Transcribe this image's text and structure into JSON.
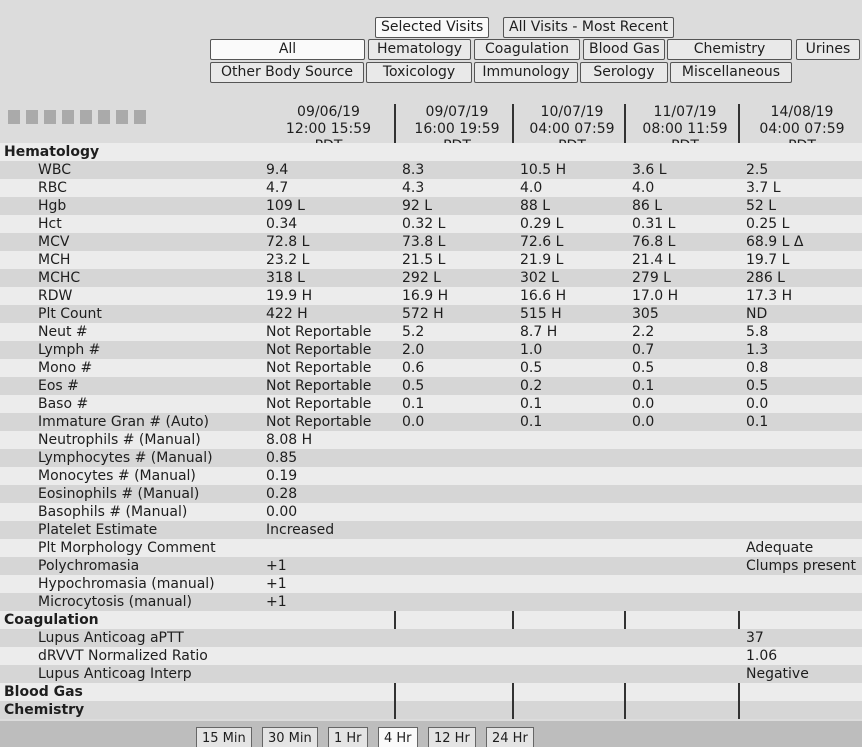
{
  "toolbar": {
    "visit_buttons": [
      "Selected Visits",
      "All Visits - Most Recent"
    ],
    "tabs_row1": [
      "All",
      "Hematology",
      "Coagulation",
      "Blood Gas",
      "Chemistry",
      "Urines"
    ],
    "tabs_row2": [
      "Other Body Source",
      "Toxicology",
      "Immunology",
      "Serology",
      "Miscellaneous"
    ]
  },
  "columns": [
    {
      "date": "09/06/19",
      "time": "12:00 15:59",
      "zone": "PDT"
    },
    {
      "date": "09/07/19",
      "time": "16:00 19:59",
      "zone": "PDT"
    },
    {
      "date": "10/07/19",
      "time": "04:00 07:59",
      "zone": "PDT"
    },
    {
      "date": "11/07/19",
      "time": "08:00 11:59",
      "zone": "PDT"
    },
    {
      "date": "14/08/19",
      "time": "04:00 07:59",
      "zone": "PDT"
    }
  ],
  "sections": [
    {
      "title": "Hematology",
      "rows": [
        {
          "label": "WBC",
          "values": [
            "9.4",
            "8.3",
            "10.5 H",
            "3.6 L",
            "2.5"
          ]
        },
        {
          "label": "RBC",
          "values": [
            "4.7",
            "4.3",
            "4.0",
            "4.0",
            "3.7 L"
          ]
        },
        {
          "label": "Hgb",
          "values": [
            "109 L",
            "92 L",
            "88 L",
            "86 L",
            "52 L"
          ]
        },
        {
          "label": "Hct",
          "values": [
            "0.34",
            "0.32 L",
            "0.29 L",
            "0.31 L",
            "0.25 L"
          ]
        },
        {
          "label": "MCV",
          "values": [
            "72.8 L",
            "73.8 L",
            "72.6 L",
            "76.8 L",
            "68.9 L Δ"
          ]
        },
        {
          "label": "MCH",
          "values": [
            "23.2 L",
            "21.5 L",
            "21.9 L",
            "21.4 L",
            "19.7 L"
          ]
        },
        {
          "label": "MCHC",
          "values": [
            "318 L",
            "292 L",
            "302 L",
            "279 L",
            "286 L"
          ]
        },
        {
          "label": "RDW",
          "values": [
            "19.9 H",
            "16.9 H",
            "16.6 H",
            "17.0 H",
            "17.3 H"
          ]
        },
        {
          "label": "Plt Count",
          "values": [
            "422 H",
            "572 H",
            "515 H",
            "305",
            "ND"
          ]
        },
        {
          "label": "Neut #",
          "values": [
            "Not Reportable",
            "5.2",
            "8.7 H",
            "2.2",
            "5.8"
          ]
        },
        {
          "label": "Lymph #",
          "values": [
            "Not Reportable",
            "2.0",
            "1.0",
            "0.7",
            "1.3"
          ]
        },
        {
          "label": "Mono #",
          "values": [
            "Not Reportable",
            "0.6",
            "0.5",
            "0.5",
            "0.8"
          ]
        },
        {
          "label": "Eos #",
          "values": [
            "Not Reportable",
            "0.5",
            "0.2",
            "0.1",
            "0.5"
          ]
        },
        {
          "label": "Baso #",
          "values": [
            "Not Reportable",
            "0.1",
            "0.1",
            "0.0",
            "0.0"
          ]
        },
        {
          "label": "Immature Gran # (Auto)",
          "values": [
            "Not Reportable",
            "0.0",
            "0.1",
            "0.0",
            "0.1"
          ]
        },
        {
          "label": "Neutrophils # (Manual)",
          "values": [
            "8.08 H",
            null,
            null,
            null,
            null
          ]
        },
        {
          "label": "Lymphocytes # (Manual)",
          "values": [
            "0.85",
            null,
            null,
            null,
            null
          ]
        },
        {
          "label": "Monocytes # (Manual)",
          "values": [
            "0.19",
            null,
            null,
            null,
            null
          ]
        },
        {
          "label": "Eosinophils # (Manual)",
          "values": [
            "0.28",
            null,
            null,
            null,
            null
          ]
        },
        {
          "label": "Basophils # (Manual)",
          "values": [
            "0.00",
            null,
            null,
            null,
            null
          ]
        },
        {
          "label": "Platelet Estimate",
          "values": [
            "Increased",
            null,
            null,
            null,
            null
          ]
        },
        {
          "label": "Plt Morphology Comment",
          "values": [
            null,
            null,
            null,
            null,
            "Adequate"
          ]
        },
        {
          "label": "Polychromasia",
          "values": [
            "+1",
            null,
            null,
            null,
            "Clumps present"
          ]
        },
        {
          "label": "Hypochromasia (manual)",
          "values": [
            "+1",
            null,
            null,
            null,
            null
          ]
        },
        {
          "label": "Microcytosis (manual)",
          "values": [
            "+1",
            null,
            null,
            null,
            null
          ]
        }
      ]
    },
    {
      "title": "Coagulation",
      "rows": [
        {
          "label": "Lupus Anticoag aPTT",
          "values": [
            null,
            null,
            null,
            null,
            "37"
          ]
        },
        {
          "label": "dRVVT Normalized Ratio",
          "values": [
            null,
            null,
            null,
            null,
            "1.06"
          ]
        },
        {
          "label": "Lupus Anticoag Interp",
          "values": [
            null,
            null,
            null,
            null,
            "Negative"
          ]
        }
      ]
    },
    {
      "title": "Blood Gas",
      "rows": []
    },
    {
      "title": "Chemistry",
      "rows": []
    }
  ],
  "bottom_tabs": [
    "15 Min",
    "30 Min",
    "1 Hr",
    "4 Hr",
    "12 Hr",
    "24 Hr"
  ]
}
